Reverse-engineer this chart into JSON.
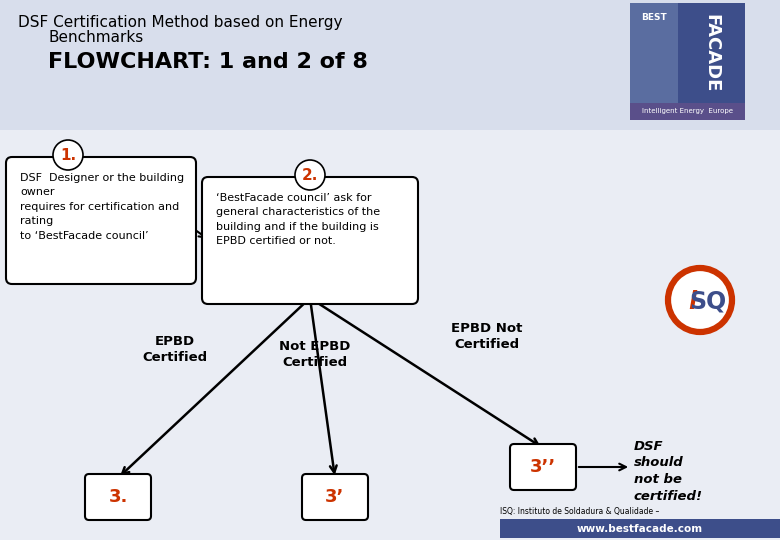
{
  "bg_color": "#eaedf4",
  "title_line1": "DSF Certification Method based on Energy",
  "title_line2": "Benchmarks",
  "title_flowchart": "FLOWCHART: 1 and 2 of 8",
  "title_fontsize": 11,
  "flowchart_fontsize": 16,
  "box1_text": "DSF  Designer or the building\nowner\nrequires for certification and\nrating\nto ‘BestFacade council’",
  "box2_text": "‘BestFacade council’ ask for\ngeneral characteristics of the\nbuilding and if the building is\nEPBD certified or not.",
  "label1": "1.",
  "label2": "2.",
  "label3": "3.",
  "label3p": "3’",
  "label3pp": "3’’",
  "branch_left": "EPBD\nCertified",
  "branch_mid": "Not EPBD\nCertified",
  "branch_right": "EPBD Not\nCertified",
  "dsf_text": "DSF\nshould\nnot be\ncertified!",
  "isq_text": "ISQ: Instituto de Soldadura & Qualidade –",
  "web_text": "www.bestfacade.com",
  "orange": "#cc3300",
  "dark_blue": "#3d4e8a",
  "mid_blue": "#5a6da0",
  "purple_bar": "#5a4f8a",
  "white": "#ffffff",
  "black": "#000000",
  "header_bg": "#d8deec"
}
